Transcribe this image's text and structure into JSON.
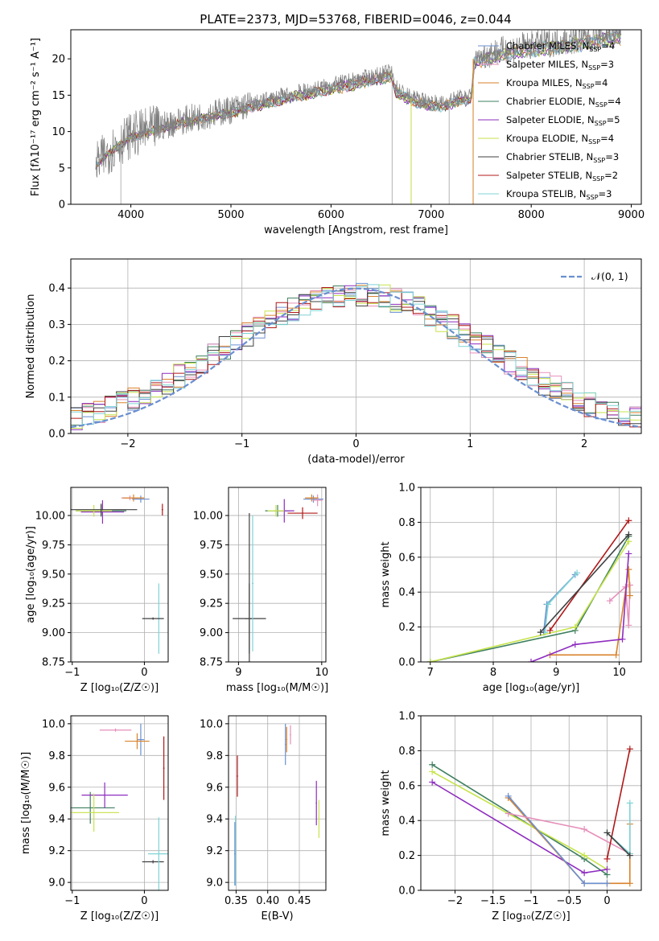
{
  "figure": {
    "title": "PLATE=2373, MJD=53768, FIBERID=0046, z=0.044"
  },
  "legend_spectrum": [
    {
      "name": "Chabrier MILES",
      "n": "4",
      "color": "#6a8fd0"
    },
    {
      "name": "Salpeter MILES",
      "n": "3",
      "color": "#e58fba"
    },
    {
      "name": "Kroupa MILES",
      "n": "4",
      "color": "#d9822b"
    },
    {
      "name": "Chabrier ELODIE",
      "n": "4",
      "color": "#3e7f5f"
    },
    {
      "name": "Salpeter ELODIE",
      "n": "5",
      "color": "#8e2cbf"
    },
    {
      "name": "Kroupa ELODIE",
      "n": "4",
      "color": "#c6e34a"
    },
    {
      "name": "Chabrier STELIB",
      "n": "3",
      "color": "#404040"
    },
    {
      "name": "Salpeter STELIB",
      "n": "2",
      "color": "#b01818"
    },
    {
      "name": "Kroupa STELIB",
      "n": "3",
      "color": "#7fd3d6"
    }
  ],
  "chart_data": [
    {
      "id": "spectrum",
      "type": "line",
      "xlabel": "wavelength [Angstrom, rest frame]",
      "ylabel": "Flux [fλ10⁻¹⁷ erg cm⁻² s⁻¹ A⁻¹]",
      "xlim": [
        3400,
        9100
      ],
      "ylim": [
        0,
        24
      ],
      "xticks": [
        4000,
        5000,
        6000,
        7000,
        8000,
        9000
      ],
      "yticks": [
        0,
        5,
        10,
        15,
        20
      ],
      "data_color": "#808080",
      "continuum": [
        [
          3650,
          5.5
        ],
        [
          3800,
          7.5
        ],
        [
          4000,
          9.5
        ],
        [
          4500,
          11.5
        ],
        [
          5000,
          13.0
        ],
        [
          5500,
          14.8
        ],
        [
          6000,
          16.3
        ],
        [
          6500,
          17.8
        ],
        [
          6600,
          18.2
        ],
        [
          6650,
          16.0
        ],
        [
          6800,
          14.6
        ],
        [
          7000,
          14.0
        ],
        [
          7100,
          13.8
        ],
        [
          7180,
          14.2
        ],
        [
          7300,
          14.7
        ],
        [
          7400,
          14.8
        ],
        [
          7430,
          20.0
        ],
        [
          7600,
          20.8
        ],
        [
          7900,
          21.7
        ],
        [
          8200,
          22.2
        ],
        [
          8500,
          22.7
        ],
        [
          8800,
          23.5
        ]
      ],
      "data_curve": [
        [
          3650,
          5.5
        ],
        [
          3800,
          7.5
        ],
        [
          4000,
          9.5
        ],
        [
          4500,
          11.5
        ],
        [
          5000,
          13.0
        ],
        [
          5500,
          14.8
        ],
        [
          6000,
          16.3
        ],
        [
          6500,
          17.8
        ],
        [
          6600,
          18.2
        ],
        [
          6650,
          16.0
        ],
        [
          6800,
          14.6
        ],
        [
          7000,
          14.0
        ],
        [
          7100,
          13.8
        ],
        [
          7180,
          14.2
        ],
        [
          7300,
          14.7
        ],
        [
          7400,
          14.8
        ],
        [
          7430,
          20.0
        ],
        [
          7600,
          20.8
        ],
        [
          7900,
          21.7
        ],
        [
          8200,
          22.2
        ],
        [
          8500,
          22.7
        ],
        [
          8800,
          23.5
        ]
      ],
      "vertical_drops": [
        3900,
        6610,
        6800,
        7180,
        7420
      ]
    },
    {
      "id": "residuals",
      "type": "area",
      "xlabel": "(data-model)/error",
      "ylabel": "Normed distribution",
      "xlim": [
        -2.5,
        2.5
      ],
      "ylim": [
        0,
        0.48
      ],
      "xticks": [
        -2,
        -1,
        0,
        1,
        2
      ],
      "yticks": [
        0.0,
        0.1,
        0.2,
        0.3,
        0.4
      ],
      "normal_label": "𝒩(0, 1)",
      "normal_color": "#6a8fd0",
      "bin_width": 0.1,
      "bin_start": -2.5
    },
    {
      "id": "age-z",
      "type": "scatter",
      "xlabel": "Z [log₁₀(Z/Z☉)]",
      "ylabel": "age  [log₁₀(age/yr)]",
      "xlim": [
        -1.02,
        0.33
      ],
      "ylim": [
        8.75,
        10.24
      ],
      "xticks": [
        -1,
        0
      ],
      "yticks": [
        8.75,
        9.0,
        9.25,
        9.5,
        9.75,
        10.0
      ]
    },
    {
      "id": "age-mass",
      "type": "scatter",
      "xlabel": "mass [log₁₀(M/M☉)]",
      "ylabel": "",
      "xlim": [
        8.88,
        10.05
      ],
      "ylim": [
        8.75,
        10.24
      ],
      "xticks": [
        9,
        10
      ],
      "yticks": [
        8.75,
        9.0,
        9.25,
        9.5,
        9.75,
        10.0
      ]
    },
    {
      "id": "mw-age",
      "type": "line",
      "xlabel": "age  [log₁₀(age/yr)]",
      "ylabel": "mass weight",
      "xlim": [
        6.85,
        10.35
      ],
      "ylim": [
        0,
        1.0
      ],
      "xticks": [
        7,
        8,
        9,
        10
      ],
      "yticks": [
        0.0,
        0.2,
        0.4,
        0.6,
        0.8,
        1.0
      ]
    },
    {
      "id": "mass-z",
      "type": "scatter",
      "xlabel": "Z [log₁₀(Z/Z☉)]",
      "ylabel": "mass [log₁₀(M/M☉)]",
      "xlim": [
        -1.02,
        0.33
      ],
      "ylim": [
        8.95,
        10.05
      ],
      "xticks": [
        -1,
        0
      ],
      "yticks": [
        9.0,
        9.2,
        9.4,
        9.6,
        9.8,
        10.0
      ]
    },
    {
      "id": "mass-ebv",
      "type": "scatter",
      "xlabel": "E(B-V)",
      "ylabel": "",
      "xlim": [
        0.338,
        0.492
      ],
      "ylim": [
        8.95,
        10.05
      ],
      "xticks": [
        0.35,
        0.4,
        0.45
      ],
      "xtick_labels": [
        "0.35",
        "0.40",
        "0.45"
      ],
      "yticks": [
        9.0,
        9.2,
        9.4,
        9.6,
        9.8,
        10.0
      ]
    },
    {
      "id": "mw-z",
      "type": "line",
      "xlabel": "Z [log₁₀(Z/Z☉)]",
      "ylabel": "mass weight",
      "xlim": [
        -2.45,
        0.45
      ],
      "ylim": [
        0,
        1.0
      ],
      "xticks": [
        -2.0,
        -1.5,
        -1.0,
        -0.5,
        0.0
      ],
      "yticks": [
        0.0,
        0.2,
        0.4,
        0.6,
        0.8,
        1.0
      ]
    }
  ],
  "model_points": {
    "age_z": [
      {
        "c": 0,
        "x": -0.05,
        "y": 10.14,
        "xe": 0.12,
        "ye": 0.03
      },
      {
        "c": 1,
        "x": -0.2,
        "y": 10.15,
        "xe": 0.12,
        "ye": 0.02
      },
      {
        "c": 2,
        "x": -0.15,
        "y": 10.15,
        "xe": 0.15,
        "ye": 0.03
      },
      {
        "c": 3,
        "x": -0.6,
        "y": 10.04,
        "xe": 0.35,
        "ye": 0.05
      },
      {
        "c": 4,
        "x": -0.58,
        "y": 10.03,
        "xe": 0.3,
        "ye": 0.1
      },
      {
        "c": 5,
        "x": -0.7,
        "y": 10.04,
        "xe": 0.25,
        "ye": 0.05
      },
      {
        "c": 6,
        "x": -0.6,
        "y": 10.05,
        "xe": 0.5,
        "ye": 0.05
      },
      {
        "c": 7,
        "x": 0.25,
        "y": 10.05,
        "xe": 0.01,
        "ye": 0.05
      },
      {
        "c": 8,
        "x": 0.2,
        "y": 9.12,
        "xe": 0.01,
        "ye": 0.3
      },
      {
        "c": 6,
        "x": 0.12,
        "y": 9.12,
        "xe": 0.15,
        "ye": 0.01
      }
    ],
    "age_mass": [
      {
        "c": 0,
        "x": 9.9,
        "y": 10.14,
        "xe": 0.12,
        "ye": 0.03
      },
      {
        "c": 1,
        "x": 9.95,
        "y": 10.13,
        "xe": 0.06,
        "ye": 0.05
      },
      {
        "c": 2,
        "x": 9.88,
        "y": 10.15,
        "xe": 0.08,
        "ye": 0.03
      },
      {
        "c": 3,
        "x": 9.47,
        "y": 10.04,
        "xe": 0.15,
        "ye": 0.05
      },
      {
        "c": 4,
        "x": 9.55,
        "y": 10.04,
        "xe": 0.12,
        "ye": 0.1
      },
      {
        "c": 5,
        "x": 9.45,
        "y": 10.04,
        "xe": 0.1,
        "ye": 0.05
      },
      {
        "c": 6,
        "x": 9.13,
        "y": 9.12,
        "xe": 0.2,
        "ye": 0.3
      },
      {
        "c": 6,
        "x": 9.13,
        "y": 9.12,
        "xe": 0.05,
        "ye": 0.9
      },
      {
        "c": 7,
        "x": 9.77,
        "y": 10.02,
        "xe": 0.18,
        "ye": 0.05
      },
      {
        "c": 8,
        "x": 9.17,
        "y": 9.42,
        "xe": 0.01,
        "ye": 0.58
      }
    ],
    "mass_z": [
      {
        "c": 0,
        "x": -0.05,
        "y": 9.9,
        "xe": 0.05,
        "ye": 0.1
      },
      {
        "c": 1,
        "x": -0.4,
        "y": 9.96,
        "xe": 0.22,
        "ye": 0.01
      },
      {
        "c": 2,
        "x": -0.1,
        "y": 9.89,
        "xe": 0.17,
        "ye": 0.05
      },
      {
        "c": 3,
        "x": -0.75,
        "y": 9.47,
        "xe": 0.34,
        "ye": 0.1
      },
      {
        "c": 4,
        "x": -0.55,
        "y": 9.55,
        "xe": 0.32,
        "ye": 0.08
      },
      {
        "c": 5,
        "x": -0.7,
        "y": 9.44,
        "xe": 0.35,
        "ye": 0.12
      },
      {
        "c": 6,
        "x": 0.12,
        "y": 9.13,
        "xe": 0.15,
        "ye": 0.01
      },
      {
        "c": 7,
        "x": 0.27,
        "y": 9.72,
        "xe": 0.01,
        "ye": 0.2
      },
      {
        "c": 8,
        "x": 0.2,
        "y": 9.18,
        "xe": 0.15,
        "ye": 0.23
      }
    ],
    "mass_ebv": [
      {
        "c": 0,
        "x": 0.428,
        "y": 9.87,
        "xe": 0.001,
        "ye": 0.13
      },
      {
        "c": 1,
        "x": 0.436,
        "y": 9.93,
        "xe": 0.001,
        "ye": 0.06
      },
      {
        "c": 2,
        "x": 0.43,
        "y": 9.9,
        "xe": 0.001,
        "ye": 0.08
      },
      {
        "c": 4,
        "x": 0.477,
        "y": 9.5,
        "xe": 0.001,
        "ye": 0.14
      },
      {
        "c": 5,
        "x": 0.481,
        "y": 9.4,
        "xe": 0.001,
        "ye": 0.12
      },
      {
        "c": 7,
        "x": 0.352,
        "y": 9.67,
        "xe": 0.001,
        "ye": 0.13
      },
      {
        "c": 8,
        "x": 0.349,
        "y": 9.2,
        "xe": 0.001,
        "ye": 0.22
      },
      {
        "c": 0,
        "x": 0.348,
        "y": 9.18,
        "xe": 0.001,
        "ye": 0.2
      }
    ]
  },
  "mass_weight_lines": {
    "mw_age": [
      {
        "c": 0,
        "pts": [
          [
            8.8,
            0.17
          ],
          [
            8.85,
            0.33
          ],
          [
            9.3,
            0.5
          ]
        ]
      },
      {
        "c": 8,
        "pts": [
          [
            8.82,
            0.17
          ],
          [
            8.87,
            0.33
          ],
          [
            9.33,
            0.51
          ]
        ]
      },
      {
        "c": 1,
        "pts": [
          [
            9.85,
            0.35
          ],
          [
            10.1,
            0.43
          ],
          [
            10.15,
            0.21
          ],
          [
            10.17,
            0.44
          ]
        ]
      },
      {
        "c": 2,
        "pts": [
          [
            8.9,
            0.04
          ],
          [
            9.95,
            0.04
          ],
          [
            10.15,
            0.53
          ],
          [
            10.17,
            0.38
          ]
        ]
      },
      {
        "c": 3,
        "pts": [
          [
            7.0,
            0.0
          ],
          [
            9.3,
            0.18
          ],
          [
            10.15,
            0.72
          ]
        ]
      },
      {
        "c": 5,
        "pts": [
          [
            7.0,
            0.0
          ],
          [
            9.3,
            0.2
          ],
          [
            10.15,
            0.69
          ]
        ]
      },
      {
        "c": 4,
        "pts": [
          [
            8.6,
            0.0
          ],
          [
            9.3,
            0.1
          ],
          [
            10.05,
            0.13
          ],
          [
            10.15,
            0.62
          ]
        ]
      },
      {
        "c": 7,
        "pts": [
          [
            8.9,
            0.18
          ],
          [
            10.15,
            0.81
          ]
        ]
      },
      {
        "c": 6,
        "pts": [
          [
            8.75,
            0.17
          ],
          [
            10.15,
            0.73
          ]
        ]
      }
    ],
    "mw_z": [
      {
        "c": 3,
        "pts": [
          [
            -2.3,
            0.72
          ],
          [
            -0.3,
            0.18
          ],
          [
            0.0,
            0.09
          ]
        ]
      },
      {
        "c": 5,
        "pts": [
          [
            -2.3,
            0.68
          ],
          [
            -0.3,
            0.2
          ],
          [
            0.0,
            0.12
          ]
        ]
      },
      {
        "c": 4,
        "pts": [
          [
            -2.3,
            0.62
          ],
          [
            -0.3,
            0.1
          ],
          [
            0.0,
            0.12
          ]
        ]
      },
      {
        "c": 2,
        "pts": [
          [
            -1.3,
            0.53
          ],
          [
            -0.3,
            0.04
          ],
          [
            0.0,
            0.04
          ],
          [
            0.3,
            0.04
          ],
          [
            0.3,
            0.38
          ]
        ]
      },
      {
        "c": 0,
        "pts": [
          [
            -1.3,
            0.54
          ],
          [
            -0.3,
            0.04
          ],
          [
            0.0,
            0.04
          ]
        ]
      },
      {
        "c": 1,
        "pts": [
          [
            -1.3,
            0.44
          ],
          [
            -0.3,
            0.35
          ],
          [
            0.3,
            0.21
          ]
        ]
      },
      {
        "c": 8,
        "pts": [
          [
            0.0,
            0.33
          ],
          [
            0.3,
            0.21
          ],
          [
            0.3,
            0.5
          ]
        ]
      },
      {
        "c": 7,
        "pts": [
          [
            0.0,
            0.18
          ],
          [
            0.3,
            0.81
          ]
        ]
      },
      {
        "c": 6,
        "pts": [
          [
            0.0,
            0.33
          ],
          [
            0.3,
            0.2
          ]
        ]
      }
    ]
  }
}
